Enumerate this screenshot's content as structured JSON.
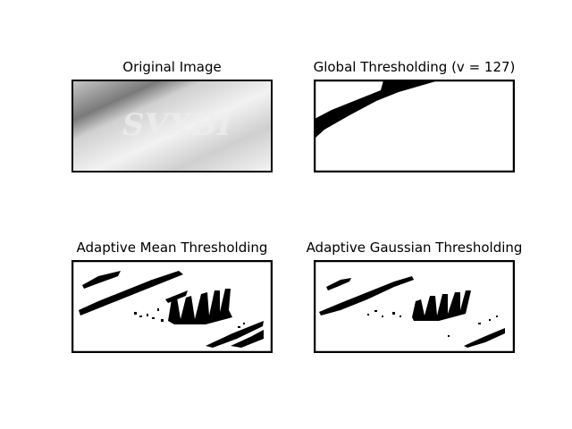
{
  "panels": [
    {
      "title": "Original Image",
      "image": "original-grayscale-license-plate"
    },
    {
      "title": "Global Thresholding (v = 127)",
      "image": "global-threshold-result"
    },
    {
      "title": "Adaptive Mean Thresholding",
      "image": "adaptive-mean-threshold-result"
    },
    {
      "title": "Adaptive Gaussian Thresholding",
      "image": "adaptive-gaussian-threshold-result"
    }
  ],
  "colors": {
    "background": "#ffffff",
    "ink": "#000000"
  }
}
